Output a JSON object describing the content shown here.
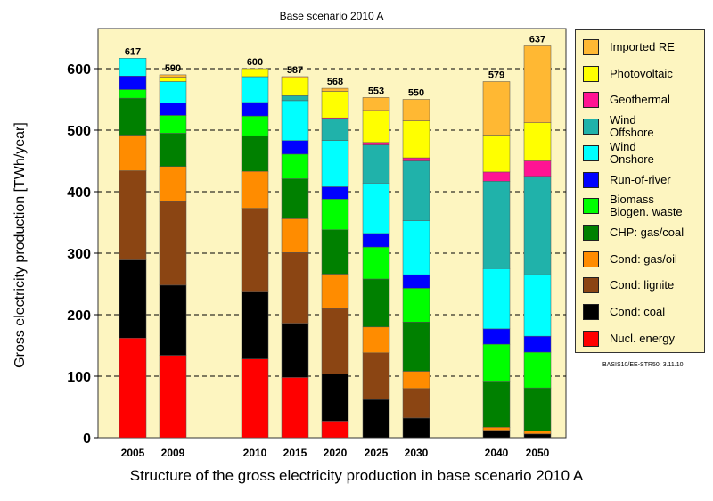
{
  "chart_data": {
    "type": "bar",
    "stacked": true,
    "title": "Base scenario 2010 A",
    "ylabel": "Gross electricity production [TWh/year]",
    "caption": "Structure of the gross electricity production in base scenario 2010 A",
    "credit": "BASIS10/EE-STR50; 3.11.10",
    "ylim": [
      0,
      650
    ],
    "yticks": [
      0,
      100,
      200,
      300,
      400,
      500,
      600
    ],
    "grid": "dashed-horizontal",
    "legend_position": "right",
    "categories": [
      "2005",
      "2009",
      "2010",
      "2015",
      "2020",
      "2025",
      "2030",
      "2040",
      "2050"
    ],
    "totals": [
      617,
      590,
      600,
      587,
      568,
      553,
      550,
      579,
      637
    ],
    "series": [
      {
        "name": "Nucl. energy",
        "color": "#ff0000",
        "values": [
          162,
          134,
          128,
          98,
          27,
          0,
          0,
          0,
          0
        ]
      },
      {
        "name": "Cond: coal",
        "color": "#000000",
        "values": [
          127,
          114,
          110,
          88,
          77,
          62,
          32,
          12,
          6
        ]
      },
      {
        "name": "Cond: lignite",
        "color": "#8b4513",
        "values": [
          145,
          136,
          135,
          115,
          106,
          76,
          48,
          0,
          0
        ]
      },
      {
        "name": "Cond: gas/oil",
        "color": "#ff8c00",
        "values": [
          58,
          57,
          60,
          55,
          56,
          42,
          28,
          5,
          5
        ]
      },
      {
        "name": "CHP: gas/coal",
        "color": "#008000",
        "values": [
          60,
          54,
          58,
          65,
          72,
          78,
          80,
          75,
          70
        ]
      },
      {
        "name": "Biomass\nBiogen. waste",
        "color": "#00ff00",
        "values": [
          14,
          29,
          32,
          40,
          50,
          52,
          55,
          60,
          58
        ]
      },
      {
        "name": "Run-of-river",
        "color": "#0000ff",
        "values": [
          22,
          20,
          22,
          22,
          20,
          22,
          22,
          25,
          26
        ]
      },
      {
        "name": "Wind\nOnshore",
        "color": "#00ffff",
        "values": [
          29,
          35,
          42,
          65,
          75,
          82,
          88,
          98,
          100
        ]
      },
      {
        "name": "Wind\nOffshore",
        "color": "#20b2aa",
        "values": [
          0,
          0,
          0,
          8,
          35,
          62,
          97,
          142,
          160
        ]
      },
      {
        "name": "Geothermal",
        "color": "#ff1493",
        "values": [
          0,
          0,
          0,
          0,
          2,
          4,
          5,
          15,
          25
        ]
      },
      {
        "name": "Photovoltaic",
        "color": "#ffff00",
        "values": [
          0,
          7,
          13,
          29,
          43,
          52,
          60,
          60,
          62
        ]
      },
      {
        "name": "Imported RE",
        "color": "#ffb833",
        "values": [
          0,
          4,
          0,
          2,
          5,
          21,
          35,
          87,
          125
        ]
      }
    ]
  }
}
